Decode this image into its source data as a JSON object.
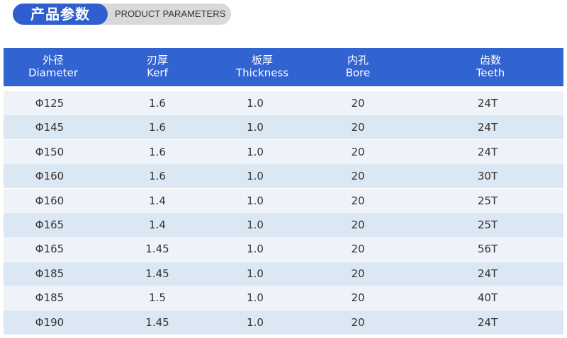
{
  "header": {
    "title": "产品参数",
    "subtitle": "PRODUCT PARAMETERS"
  },
  "table": {
    "columns": [
      {
        "zh": "外径",
        "en": "Diameter"
      },
      {
        "zh": "刃厚",
        "en": "Kerf"
      },
      {
        "zh": "板厚",
        "en": "Thickness"
      },
      {
        "zh": "内孔",
        "en": "Bore"
      },
      {
        "zh": "齿数",
        "en": "Teeth"
      }
    ],
    "rows": [
      [
        "Φ125",
        "1.6",
        "1.0",
        "20",
        "24T"
      ],
      [
        "Φ145",
        "1.6",
        "1.0",
        "20",
        "24T"
      ],
      [
        "Φ150",
        "1.6",
        "1.0",
        "20",
        "24T"
      ],
      [
        "Φ160",
        "1.6",
        "1.0",
        "20",
        "30T"
      ],
      [
        "Φ160",
        "1.4",
        "1.0",
        "20",
        "25T"
      ],
      [
        "Φ165",
        "1.4",
        "1.0",
        "20",
        "25T"
      ],
      [
        "Φ165",
        "1.45",
        "1.0",
        "20",
        "56T"
      ],
      [
        "Φ185",
        "1.45",
        "1.0",
        "20",
        "24T"
      ],
      [
        "Φ185",
        "1.5",
        "1.0",
        "20",
        "40T"
      ],
      [
        "Φ190",
        "1.45",
        "1.0",
        "20",
        "24T"
      ]
    ]
  }
}
